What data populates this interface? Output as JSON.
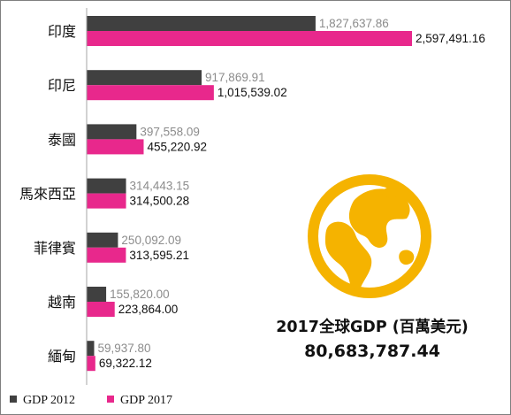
{
  "chart_data": {
    "type": "bar",
    "orientation": "horizontal",
    "categories": [
      "印度",
      "印尼",
      "泰國",
      "馬來西亞",
      "菲律賓",
      "越南",
      "緬甸"
    ],
    "series": [
      {
        "name": "GDP 2012",
        "color": "#404040",
        "values": [
          1827637.86,
          917869.91,
          397558.09,
          314443.15,
          250092.09,
          155820.0,
          59937.8
        ],
        "labels": [
          "1,827,637.86",
          "917,869.91",
          "397,558.09",
          "314,443.15",
          "250,092.09",
          "155,820.00",
          "59,937.80"
        ]
      },
      {
        "name": "GDP 2017",
        "color": "#e8288c",
        "values": [
          2597491.16,
          1015539.02,
          455220.92,
          314500.28,
          313595.21,
          223864.0,
          69322.12
        ],
        "labels": [
          "2,597,491.16",
          "1,015,539.02",
          "455,220.92",
          "314,500.28",
          "313,595.21",
          "223,864.00",
          "69,322.12"
        ]
      }
    ],
    "legend_position": "bottom-left",
    "grid": false
  },
  "summary": {
    "title": "2017全球GDP (百萬美元)",
    "value": "80,683,787.44"
  },
  "icon": {
    "name": "globe-icon",
    "color": "#f5b300"
  }
}
